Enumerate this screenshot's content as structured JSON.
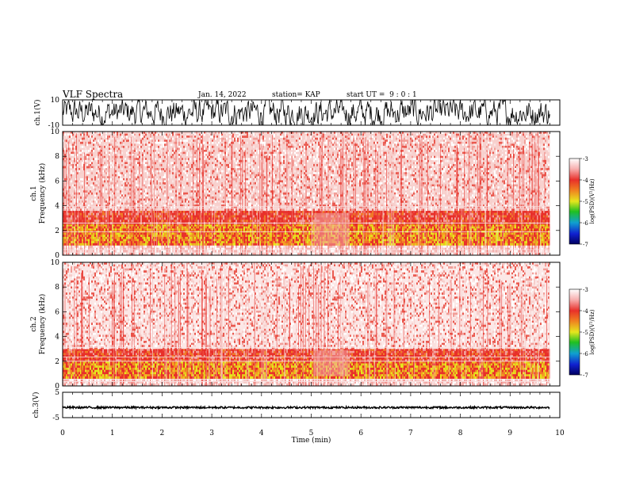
{
  "header": {
    "title": "VLF Spectra",
    "date": "Jan. 14, 2022",
    "station": "station= KAP",
    "start": "start UT =  9 : 0 : 1"
  },
  "colors": {
    "spectrum_red": "#e8302a",
    "spectrum_pink": "#f6c9c6",
    "spectrum_yellow": "#e6e61e",
    "waveform": "#000000"
  },
  "chart_data": [
    {
      "type": "line",
      "name": "ch1-waveform",
      "ylabel": "ch.1(V)",
      "ylim": [
        -10,
        10
      ],
      "yticks": [
        "10",
        "-10"
      ],
      "xlim": [
        0,
        10
      ],
      "description_values": "dense oscillating waveform filling most of the -10..10 range over 0-9.8 min"
    },
    {
      "type": "heatmap",
      "name": "ch1-spectrogram",
      "ylabel": "ch.1 Frequency (kHz)",
      "ylim": [
        0,
        10
      ],
      "yticks": [
        "0",
        "2",
        "4",
        "6",
        "8",
        "10"
      ],
      "xlim": [
        0,
        10
      ],
      "data_extent_x": [
        0,
        9.8
      ],
      "bands": [
        {
          "from_khz": 0.0,
          "to_khz": 0.8,
          "level": "pale"
        },
        {
          "from_khz": 0.8,
          "to_khz": 2.5,
          "level": "high"
        },
        {
          "from_khz": 2.5,
          "to_khz": 3.6,
          "level": "mid"
        },
        {
          "from_khz": 3.6,
          "to_khz": 10,
          "level": "low"
        }
      ],
      "colorbar": {
        "label": "log(PSD)(V²/Hz)",
        "range": [
          -7,
          -3
        ],
        "ticks": [
          "-3",
          "-4",
          "-5",
          "-6",
          "-7"
        ]
      }
    },
    {
      "type": "heatmap",
      "name": "ch2-spectrogram",
      "ylabel": "ch.2 Frequency (kHz)",
      "ylim": [
        0,
        10
      ],
      "yticks": [
        "0",
        "2",
        "4",
        "6",
        "8",
        "10"
      ],
      "xlim": [
        0,
        10
      ],
      "data_extent_x": [
        0,
        9.8
      ],
      "bands": [
        {
          "from_khz": 0.0,
          "to_khz": 0.6,
          "level": "pale"
        },
        {
          "from_khz": 0.6,
          "to_khz": 2.0,
          "level": "high"
        },
        {
          "from_khz": 2.0,
          "to_khz": 3.0,
          "level": "mid"
        },
        {
          "from_khz": 3.0,
          "to_khz": 10,
          "level": "low"
        }
      ],
      "colorbar": {
        "label": "log(PSD)(V²/Hz)",
        "range": [
          -7,
          -3
        ],
        "ticks": [
          "-3",
          "-4",
          "-5",
          "-6",
          "-7"
        ]
      }
    },
    {
      "type": "line",
      "name": "ch3-waveform",
      "ylabel": "ch.3(V)",
      "ylim": [
        -5,
        5
      ],
      "yticks": [
        "5",
        "-5"
      ],
      "xlim": [
        0,
        10
      ],
      "baseline": -1,
      "amplitude": 0.4
    }
  ],
  "xaxis": {
    "label": "Time (min)",
    "ticks": [
      "0",
      "1",
      "2",
      "3",
      "4",
      "5",
      "6",
      "7",
      "8",
      "9",
      "10"
    ]
  }
}
